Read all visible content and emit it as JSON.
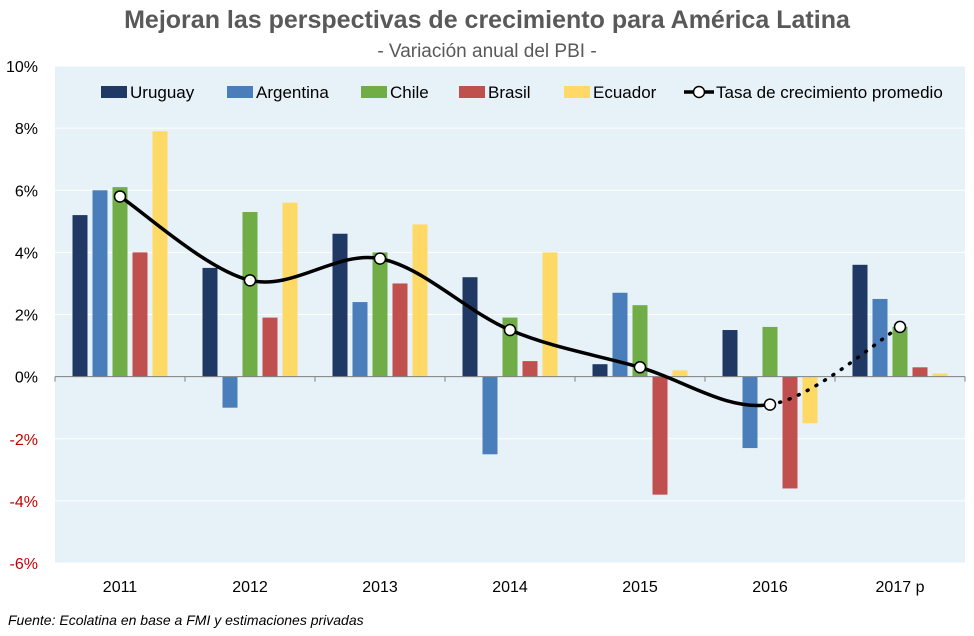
{
  "header": {
    "title": "Mejoran las perspectivas de crecimiento para América Latina",
    "subtitle": "- Variación anual del PBI -"
  },
  "footer": {
    "source": "Fuente: Ecolatina en base a FMI y estimaciones privadas"
  },
  "colors": {
    "plot_background": "#e7f1f8",
    "gridline": "#ffffff",
    "zero_line": "#808080",
    "average_line": "#000000"
  },
  "chart_data": {
    "type": "bar",
    "title": "Mejoran las perspectivas de crecimiento para América Latina",
    "subtitle": "- Variación anual del PBI -",
    "categories": [
      "2011",
      "2012",
      "2013",
      "2014",
      "2015",
      "2016",
      "2017 p"
    ],
    "ylim": [
      -6,
      10
    ],
    "ytick_values": [
      -6,
      -4,
      -2,
      0,
      2,
      4,
      6,
      8,
      10
    ],
    "ytick_labels": [
      "-6%",
      "-4%",
      "-2%",
      "0%",
      "2%",
      "4%",
      "6%",
      "8%",
      "10%"
    ],
    "negative_tick_color": "#c00000",
    "grid": true,
    "legend_position": "top",
    "series": [
      {
        "name": "Uruguay",
        "color": "#1f3864",
        "values": [
          5.2,
          3.5,
          4.6,
          3.2,
          0.4,
          1.5,
          3.6
        ]
      },
      {
        "name": "Argentina",
        "color": "#4a7ebb",
        "values": [
          6.0,
          -1.0,
          2.4,
          -2.5,
          2.7,
          -2.3,
          2.5
        ]
      },
      {
        "name": "Chile",
        "color": "#70ad47",
        "values": [
          6.1,
          5.3,
          4.0,
          1.9,
          2.3,
          1.6,
          1.6
        ]
      },
      {
        "name": "Brasil",
        "color": "#c0504d",
        "values": [
          4.0,
          1.9,
          3.0,
          0.5,
          -3.8,
          -3.6,
          0.3
        ]
      },
      {
        "name": "Ecuador",
        "color": "#ffd966",
        "values": [
          7.9,
          5.6,
          4.9,
          4.0,
          0.2,
          -1.5,
          0.1
        ]
      }
    ],
    "line_series": {
      "name": "Tasa de crecimiento promedio",
      "color": "#000000",
      "values": [
        5.8,
        3.1,
        3.8,
        1.5,
        0.3,
        -0.9,
        1.6
      ],
      "dotted_from_index": 5
    }
  }
}
